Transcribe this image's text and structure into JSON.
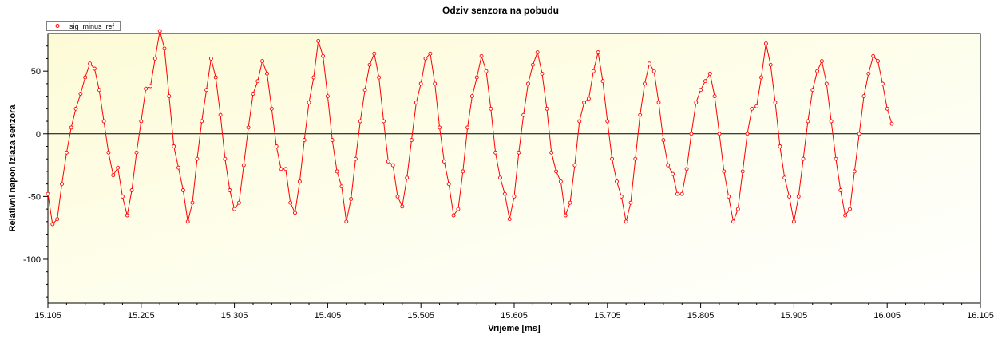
{
  "chart_data": {
    "type": "line",
    "title": "Odziv senzora na pobudu",
    "xlabel": "Vrijeme [ms]",
    "ylabel": "Relativni napon izlaza senzora",
    "xlim": [
      15.105,
      16.105
    ],
    "ylim": [
      -135,
      80
    ],
    "x_ticks": [
      15.105,
      15.205,
      15.305,
      15.405,
      15.505,
      15.605,
      15.705,
      15.805,
      15.905,
      16.005,
      16.105
    ],
    "x_tick_labels": [
      "15.105",
      "15.205",
      "15.305",
      "15.405",
      "15.505",
      "15.605",
      "15.705",
      "15.805",
      "15.905",
      "16.005",
      "16.105"
    ],
    "y_ticks": [
      50,
      0,
      -50,
      -100
    ],
    "y_tick_labels": [
      "50",
      "0",
      "-50",
      "-100"
    ],
    "zero_line": true,
    "legend": "top-left",
    "series": [
      {
        "name": "sig_minus_ref",
        "color": "#ff0000",
        "marker": "circle",
        "points": [
          [
            15.105,
            -48
          ],
          [
            15.11,
            -72
          ],
          [
            15.115,
            -68
          ],
          [
            15.12,
            -40
          ],
          [
            15.125,
            -15
          ],
          [
            15.13,
            5
          ],
          [
            15.135,
            20
          ],
          [
            15.14,
            32
          ],
          [
            15.145,
            45
          ],
          [
            15.15,
            56
          ],
          [
            15.155,
            52
          ],
          [
            15.16,
            35
          ],
          [
            15.165,
            10
          ],
          [
            15.17,
            -15
          ],
          [
            15.175,
            -33
          ],
          [
            15.18,
            -27
          ],
          [
            15.185,
            -50
          ],
          [
            15.19,
            -65
          ],
          [
            15.195,
            -45
          ],
          [
            15.2,
            -15
          ],
          [
            15.205,
            10
          ],
          [
            15.21,
            36
          ],
          [
            15.215,
            38
          ],
          [
            15.22,
            60
          ],
          [
            15.225,
            82
          ],
          [
            15.23,
            68
          ],
          [
            15.235,
            30
          ],
          [
            15.24,
            -10
          ],
          [
            15.245,
            -27
          ],
          [
            15.25,
            -45
          ],
          [
            15.255,
            -70
          ],
          [
            15.26,
            -55
          ],
          [
            15.265,
            -20
          ],
          [
            15.27,
            10
          ],
          [
            15.275,
            35
          ],
          [
            15.28,
            60
          ],
          [
            15.285,
            45
          ],
          [
            15.29,
            15
          ],
          [
            15.295,
            -20
          ],
          [
            15.3,
            -45
          ],
          [
            15.305,
            -60
          ],
          [
            15.31,
            -55
          ],
          [
            15.315,
            -25
          ],
          [
            15.32,
            5
          ],
          [
            15.325,
            32
          ],
          [
            15.33,
            42
          ],
          [
            15.335,
            58
          ],
          [
            15.34,
            48
          ],
          [
            15.345,
            20
          ],
          [
            15.35,
            -10
          ],
          [
            15.355,
            -28
          ],
          [
            15.36,
            -28
          ],
          [
            15.365,
            -55
          ],
          [
            15.37,
            -63
          ],
          [
            15.375,
            -38
          ],
          [
            15.38,
            -5
          ],
          [
            15.385,
            25
          ],
          [
            15.39,
            45
          ],
          [
            15.395,
            74
          ],
          [
            15.4,
            62
          ],
          [
            15.405,
            30
          ],
          [
            15.41,
            -5
          ],
          [
            15.415,
            -30
          ],
          [
            15.42,
            -42
          ],
          [
            15.425,
            -70
          ],
          [
            15.43,
            -52
          ],
          [
            15.435,
            -20
          ],
          [
            15.44,
            10
          ],
          [
            15.445,
            35
          ],
          [
            15.45,
            55
          ],
          [
            15.455,
            64
          ],
          [
            15.46,
            45
          ],
          [
            15.465,
            10
          ],
          [
            15.47,
            -22
          ],
          [
            15.475,
            -25
          ],
          [
            15.48,
            -50
          ],
          [
            15.485,
            -58
          ],
          [
            15.49,
            -35
          ],
          [
            15.495,
            -5
          ],
          [
            15.5,
            25
          ],
          [
            15.505,
            40
          ],
          [
            15.51,
            60
          ],
          [
            15.515,
            64
          ],
          [
            15.52,
            40
          ],
          [
            15.525,
            5
          ],
          [
            15.53,
            -22
          ],
          [
            15.535,
            -40
          ],
          [
            15.54,
            -65
          ],
          [
            15.545,
            -60
          ],
          [
            15.55,
            -30
          ],
          [
            15.555,
            5
          ],
          [
            15.56,
            30
          ],
          [
            15.565,
            45
          ],
          [
            15.57,
            62
          ],
          [
            15.575,
            50
          ],
          [
            15.58,
            20
          ],
          [
            15.585,
            -15
          ],
          [
            15.59,
            -35
          ],
          [
            15.595,
            -48
          ],
          [
            15.6,
            -68
          ],
          [
            15.605,
            -50
          ],
          [
            15.61,
            -15
          ],
          [
            15.615,
            15
          ],
          [
            15.62,
            40
          ],
          [
            15.625,
            55
          ],
          [
            15.63,
            65
          ],
          [
            15.635,
            48
          ],
          [
            15.64,
            20
          ],
          [
            15.645,
            -15
          ],
          [
            15.65,
            -30
          ],
          [
            15.655,
            -38
          ],
          [
            15.66,
            -65
          ],
          [
            15.665,
            -55
          ],
          [
            15.67,
            -25
          ],
          [
            15.675,
            10
          ],
          [
            15.68,
            25
          ],
          [
            15.685,
            28
          ],
          [
            15.69,
            50
          ],
          [
            15.695,
            65
          ],
          [
            15.7,
            42
          ],
          [
            15.705,
            10
          ],
          [
            15.71,
            -20
          ],
          [
            15.715,
            -38
          ],
          [
            15.72,
            -50
          ],
          [
            15.725,
            -70
          ],
          [
            15.73,
            -55
          ],
          [
            15.735,
            -20
          ],
          [
            15.74,
            15
          ],
          [
            15.745,
            40
          ],
          [
            15.75,
            56
          ],
          [
            15.755,
            50
          ],
          [
            15.76,
            25
          ],
          [
            15.765,
            -5
          ],
          [
            15.77,
            -25
          ],
          [
            15.775,
            -32
          ],
          [
            15.78,
            -48
          ],
          [
            15.785,
            -48
          ],
          [
            15.79,
            -28
          ],
          [
            15.795,
            0
          ],
          [
            15.8,
            25
          ],
          [
            15.805,
            35
          ],
          [
            15.81,
            42
          ],
          [
            15.815,
            48
          ],
          [
            15.82,
            30
          ],
          [
            15.825,
            0
          ],
          [
            15.83,
            -30
          ],
          [
            15.835,
            -50
          ],
          [
            15.84,
            -70
          ],
          [
            15.845,
            -60
          ],
          [
            15.85,
            -30
          ],
          [
            15.855,
            0
          ],
          [
            15.86,
            20
          ],
          [
            15.865,
            22
          ],
          [
            15.87,
            45
          ],
          [
            15.875,
            72
          ],
          [
            15.88,
            55
          ],
          [
            15.885,
            25
          ],
          [
            15.89,
            -10
          ],
          [
            15.895,
            -35
          ],
          [
            15.9,
            -50
          ],
          [
            15.905,
            -70
          ],
          [
            15.91,
            -50
          ],
          [
            15.915,
            -20
          ],
          [
            15.92,
            10
          ],
          [
            15.925,
            35
          ],
          [
            15.93,
            50
          ],
          [
            15.935,
            58
          ],
          [
            15.94,
            40
          ],
          [
            15.945,
            10
          ],
          [
            15.95,
            -20
          ],
          [
            15.955,
            -45
          ],
          [
            15.96,
            -65
          ],
          [
            15.965,
            -60
          ],
          [
            15.97,
            -30
          ],
          [
            15.975,
            0
          ],
          [
            15.98,
            30
          ],
          [
            15.985,
            48
          ],
          [
            15.99,
            62
          ],
          [
            15.995,
            58
          ],
          [
            16.0,
            40
          ],
          [
            16.005,
            20
          ],
          [
            16.01,
            8
          ]
        ]
      }
    ]
  }
}
